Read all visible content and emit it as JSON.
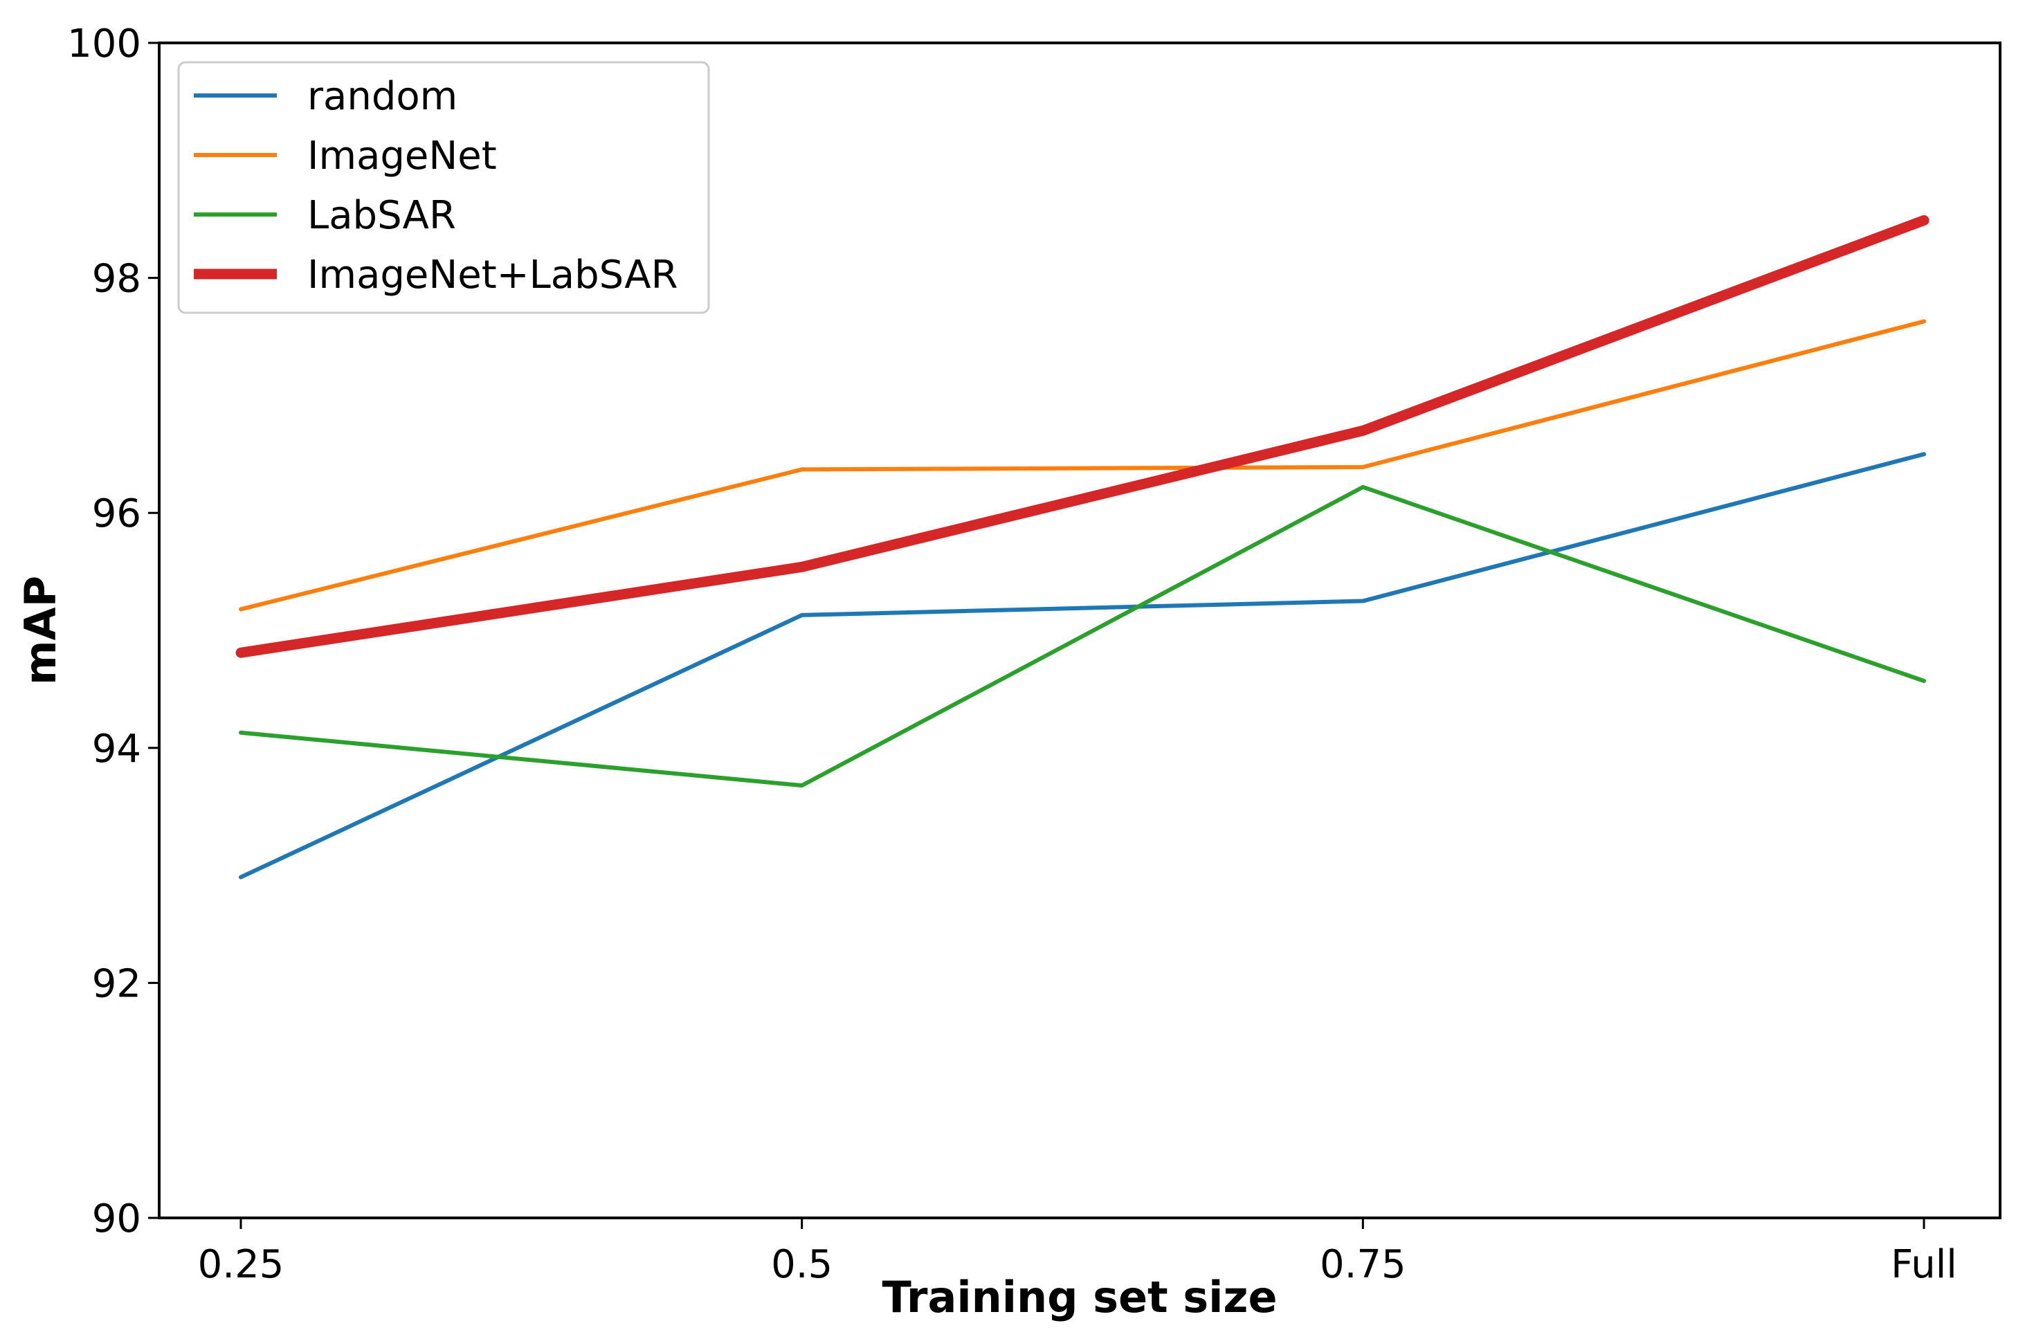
{
  "chart_data": {
    "type": "line",
    "title": "",
    "xlabel": "Training set size",
    "ylabel": "mAP",
    "categories": [
      "0.25",
      "0.5",
      "0.75",
      "Full"
    ],
    "ylim": [
      90,
      100
    ],
    "yticks": [
      90,
      92,
      94,
      96,
      98,
      100
    ],
    "grid": false,
    "legend_position": "top-left",
    "series": [
      {
        "name": "random",
        "color": "#1f77b4",
        "emphasis": false,
        "values": [
          92.9,
          95.13,
          95.25,
          96.5
        ]
      },
      {
        "name": "ImageNet",
        "color": "#ff7f0e",
        "emphasis": false,
        "values": [
          95.18,
          96.37,
          96.39,
          97.63
        ]
      },
      {
        "name": "LabSAR",
        "color": "#2ca02c",
        "emphasis": false,
        "values": [
          94.13,
          93.68,
          96.22,
          94.57
        ]
      },
      {
        "name": "ImageNet+LabSAR",
        "color": "#d62728",
        "emphasis": true,
        "values": [
          94.81,
          95.54,
          96.7,
          98.49
        ]
      }
    ]
  }
}
